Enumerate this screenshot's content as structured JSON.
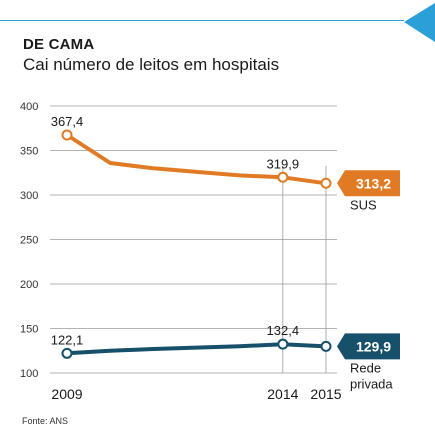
{
  "title": "DE CAMA",
  "subtitle": "Cai número de leitos em hospitais",
  "source": "Fonte: ANS",
  "chart_data": {
    "type": "line",
    "title": "DE CAMA",
    "subtitle": "Cai número de leitos em hospitais",
    "x": [
      2009,
      2010,
      2011,
      2012,
      2013,
      2014,
      2015
    ],
    "xtick_labels": [
      "2009",
      "2014",
      "2015"
    ],
    "xtick_values": [
      2009,
      2014,
      2015
    ],
    "ylim": [
      100,
      400
    ],
    "yticks": [
      "100",
      "150",
      "200",
      "250",
      "300",
      "350",
      "400"
    ],
    "ytick_values": [
      100,
      150,
      200,
      250,
      300,
      350,
      400
    ],
    "grid": "horizontal",
    "series": [
      {
        "name": "SUS",
        "color": "#e07a25",
        "values": [
          367.4,
          336,
          330,
          326,
          322,
          319.9,
          313.2
        ],
        "labels": [
          {
            "x": 2009,
            "text": "367,4"
          },
          {
            "x": 2014,
            "text": "319,9"
          }
        ],
        "end_label": "313,2",
        "markers": [
          2009,
          2014,
          2015
        ]
      },
      {
        "name": "Rede privada",
        "name_lines": [
          "Rede",
          "privada"
        ],
        "color": "#17506b",
        "values": [
          122.1,
          125,
          127,
          128.5,
          130,
          132.4,
          129.9
        ],
        "labels": [
          {
            "x": 2009,
            "text": "122,1"
          },
          {
            "x": 2014,
            "text": "132,4"
          }
        ],
        "end_label": "129,9",
        "markers": [
          2009,
          2014,
          2015
        ]
      }
    ]
  }
}
